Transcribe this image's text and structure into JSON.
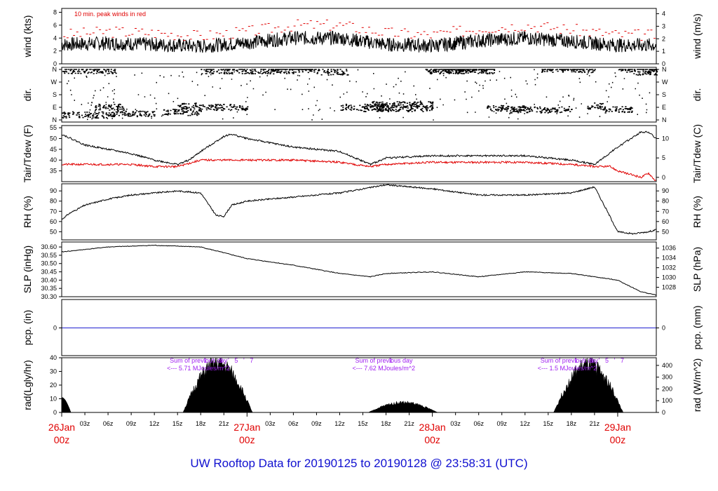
{
  "title": "UW Rooftop Data for 20190125  to  20190128 @ 23:58:31  (UTC)",
  "x_axis": {
    "hour_ticks": [
      "03z",
      "06z",
      "09z",
      "12z",
      "15z",
      "18z",
      "21z"
    ],
    "days": [
      {
        "date": "26Jan",
        "hour": "00z"
      },
      {
        "date": "27Jan",
        "hour": "00z"
      },
      {
        "date": "28Jan",
        "hour": "00z"
      },
      {
        "date": "29Jan",
        "hour": "00z"
      }
    ]
  },
  "chart_data": [
    {
      "type": "line",
      "id": "wind",
      "ylabel_left": "wind (kts)",
      "ylabel_right": "wind (m/s)",
      "ylim": [
        0,
        8.6
      ],
      "left_ticks": [
        0,
        2,
        4,
        6,
        8
      ],
      "right_ticks": [
        0,
        1,
        2,
        3,
        4
      ],
      "annotation": "10 min. peak winds in red",
      "series": [
        {
          "color": "#000000",
          "x_hours": [
            0,
            6,
            12,
            18,
            24,
            30,
            36,
            42,
            48,
            54,
            60,
            66,
            72
          ],
          "values": [
            3,
            3.2,
            3,
            2.7,
            3.3,
            4,
            4,
            3,
            2.8,
            3.6,
            4,
            3.5,
            2.9
          ]
        },
        {
          "color": "#e00000",
          "x_hours": [
            0,
            6,
            12,
            18,
            24,
            30,
            36,
            42,
            48,
            54,
            60,
            66,
            72
          ],
          "values": [
            4.5,
            5,
            4.8,
            4.3,
            5,
            6,
            6,
            4.8,
            4.5,
            5.5,
            6,
            5.3,
            4.5
          ]
        }
      ]
    },
    {
      "type": "scatter",
      "id": "dir",
      "ylabel_left": "dir.",
      "ylabel_right": "dir.",
      "left_ticks": [
        "N",
        "E",
        "S",
        "W",
        "N"
      ],
      "right_ticks": [
        "N",
        "E",
        "S",
        "W",
        "N"
      ]
    },
    {
      "type": "line",
      "id": "temp",
      "ylabel_left": "Tair/Tdew (F)",
      "ylabel_right": "Tair/Tdew (C)",
      "ylim": [
        30,
        56
      ],
      "left_ticks": [
        35,
        40,
        45,
        50,
        55
      ],
      "right_ticks": [
        0,
        5,
        10
      ],
      "series": [
        {
          "name": "Tair",
          "color": "#000000",
          "x_hours": [
            0,
            3,
            6,
            9,
            12,
            15,
            16.5,
            18,
            21,
            22,
            24,
            30,
            36,
            40,
            42,
            48,
            54,
            60,
            66,
            69,
            72,
            75,
            76,
            77
          ],
          "values": [
            52,
            47,
            45,
            43,
            40,
            38,
            40,
            44,
            51,
            52,
            50,
            46,
            44,
            38,
            41,
            42,
            42,
            42,
            40,
            38,
            46,
            53,
            53,
            50
          ]
        },
        {
          "name": "Tdew",
          "color": "#e00000",
          "x_hours": [
            0,
            3,
            6,
            9,
            12,
            15,
            18,
            21,
            24,
            30,
            36,
            40,
            42,
            48,
            54,
            60,
            66,
            69,
            70,
            71,
            72,
            74,
            75,
            76,
            77
          ],
          "values": [
            38,
            38,
            38,
            38,
            37,
            37,
            40,
            40,
            40,
            40,
            39,
            37,
            38,
            39,
            39,
            39,
            38,
            37,
            37,
            37,
            35,
            33,
            32,
            34,
            30
          ]
        }
      ]
    },
    {
      "type": "line",
      "id": "rh",
      "ylabel_left": "RH (%)",
      "ylabel_right": "RH (%)",
      "ylim": [
        42,
        97
      ],
      "left_ticks": [
        50,
        60,
        70,
        80,
        90
      ],
      "right_ticks": [
        50,
        60,
        70,
        80,
        90
      ],
      "series": [
        {
          "color": "#000000",
          "x_hours": [
            0,
            1,
            3,
            6,
            9,
            12,
            15,
            18,
            20,
            21,
            22,
            24,
            30,
            36,
            42,
            48,
            54,
            60,
            66,
            69,
            71,
            72,
            74,
            76,
            77
          ],
          "values": [
            62,
            68,
            76,
            82,
            86,
            88,
            90,
            88,
            66,
            65,
            76,
            80,
            84,
            88,
            96,
            92,
            86,
            86,
            88,
            94,
            65,
            50,
            48,
            50,
            52
          ]
        }
      ]
    },
    {
      "type": "line",
      "id": "slp",
      "ylabel_left": "SLP (inHg)",
      "ylabel_right": "SLP (hPa)",
      "ylim": [
        30.3,
        30.63
      ],
      "left_ticks": [
        30.3,
        30.35,
        30.4,
        30.45,
        30.5,
        30.55,
        30.6
      ],
      "right_ticks": [
        1028,
        1030,
        1032,
        1034,
        1036
      ],
      "series": [
        {
          "color": "#000000",
          "x_hours": [
            0,
            6,
            12,
            18,
            24,
            30,
            36,
            40,
            42,
            48,
            54,
            60,
            66,
            72,
            75,
            77
          ],
          "values": [
            30.57,
            30.6,
            30.61,
            30.6,
            30.53,
            30.49,
            30.44,
            30.42,
            30.44,
            30.45,
            30.42,
            30.45,
            30.44,
            30.4,
            30.33,
            30.31
          ]
        }
      ]
    },
    {
      "type": "line",
      "id": "pcp",
      "ylabel_left": "pcp. (in)",
      "ylabel_right": "pcp. (mm)",
      "left_ticks": [
        0
      ],
      "right_ticks": [
        0
      ],
      "series": [
        {
          "color": "#2020d0",
          "x_hours": [
            0,
            77
          ],
          "values": [
            0,
            0
          ]
        }
      ]
    },
    {
      "type": "area",
      "id": "rad",
      "ylabel_left": "rad(Lgly/hr)",
      "ylabel_right": "rad (W/m^2)",
      "ylim": [
        0,
        40
      ],
      "left_ticks": [
        0,
        10,
        20,
        30,
        40
      ],
      "right_ticks": [
        0,
        100,
        200,
        300,
        400
      ],
      "days": [
        {
          "center": 20.2,
          "half": 4.5,
          "peak": 37
        },
        {
          "center": 44.2,
          "half": 4.5,
          "peak": 7.5
        },
        {
          "center": 68.2,
          "half": 4.5,
          "peak": 36
        }
      ],
      "notes": [
        {
          "line1": "Sum of previous day",
          "line2": "<--- 5.71 MJoules/m^2"
        },
        {
          "line1": "Sum of previous day",
          "line2": "<--- 7.62 MJoules/m^2"
        },
        {
          "line1": "Sum of previous day",
          "line2": "<--- 1.5 MJoules/m^2"
        }
      ],
      "markers": [
        [
          "1",
          "'",
          "3",
          "'",
          "5",
          "'",
          "7"
        ],
        [
          "1"
        ],
        [
          "1",
          "'",
          "3",
          "'",
          "5",
          "'",
          "7"
        ]
      ]
    }
  ]
}
